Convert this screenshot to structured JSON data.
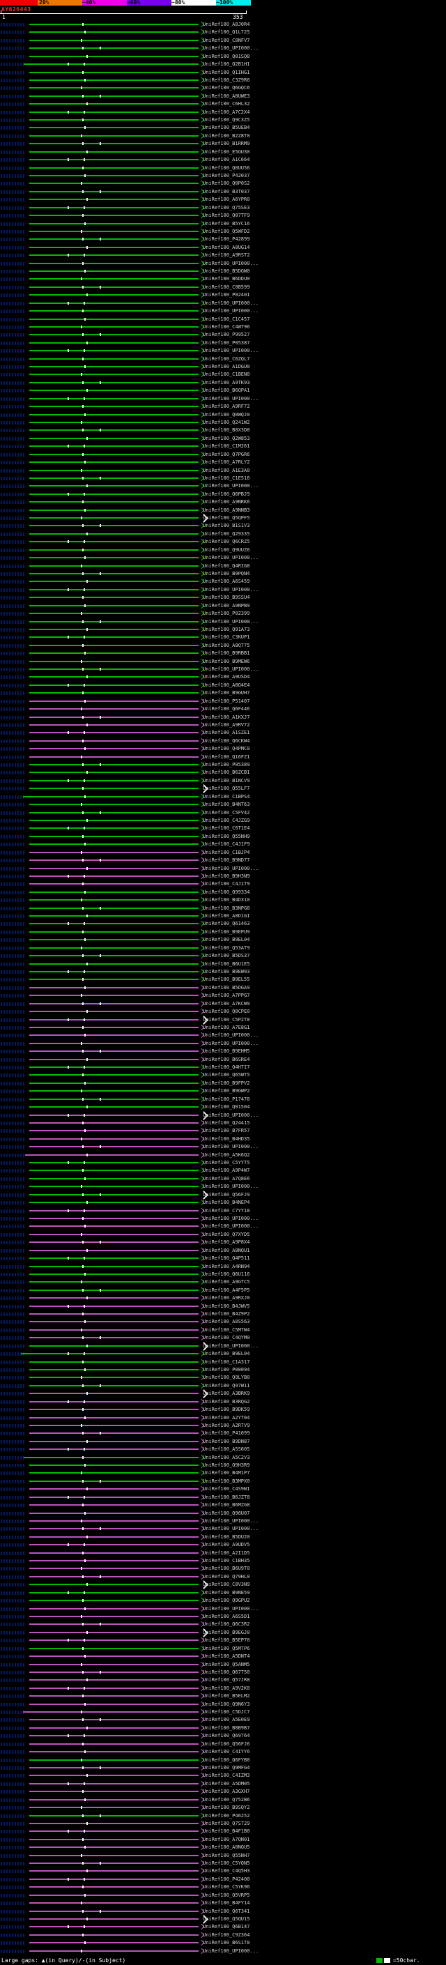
{
  "chart_data": {
    "type": "bar",
    "orientation": "horizontal",
    "title": "AY626443",
    "x_range": [
      1,
      353
    ],
    "ruler": {
      "start_label": "1",
      "end_label": "353"
    },
    "identity_scale": {
      "segments": [
        {
          "color": "#ee0000",
          "w": 54
        },
        {
          "color": "#ee7700",
          "w": 64
        },
        {
          "color": "#ee00ee",
          "w": 64
        },
        {
          "color": "#7700ee",
          "w": 64
        },
        {
          "color": "#ffffff",
          "w": 64
        },
        {
          "color": "#00eeee",
          "w": 50
        }
      ],
      "labels": [
        {
          "t": "20%",
          "x": 56
        },
        {
          "t": "~40%",
          "x": 118
        },
        {
          "t": "~60%",
          "x": 182
        },
        {
          "t": "~80%",
          "x": 246
        },
        {
          "t": "~100%",
          "x": 310
        }
      ]
    },
    "legend": {
      "large_gaps": "Large gaps: ▲(in Query)/-(in Subject)",
      "scale_label": "=50char."
    },
    "colors": {
      "green": "#00bb00",
      "purple": "#bb55bb",
      "gap_dot": "#ffffff",
      "ext_arrow": "#e8e8e8"
    },
    "defaults": {
      "start": 42,
      "end": 285
    },
    "gap_patterns": [
      [
        118
      ],
      [
        121
      ],
      [
        116
      ],
      [
        118,
        143
      ],
      [
        124
      ],
      [
        97,
        120
      ]
    ],
    "rows": [
      {
        "l": "UniRef100_A8J0R4",
        "c": "g"
      },
      {
        "l": "UniRef100_Q1L725",
        "c": "g"
      },
      {
        "l": "UniRef100_C0NFV7",
        "c": "g"
      },
      {
        "l": "UniRef100_UPI000...",
        "c": "g"
      },
      {
        "l": "UniRef100_Q01SQ8",
        "c": "g"
      },
      {
        "l": "UniRef100_Q2B1H1",
        "c": "g",
        "s": 34
      },
      {
        "l": "UniRef100_Q1IHG1",
        "c": "g"
      },
      {
        "l": "UniRef100_C3Z9R6",
        "c": "g"
      },
      {
        "l": "UniRef100_Q6GQC6",
        "c": "g"
      },
      {
        "l": "UniRef100_A8UWE3",
        "c": "g"
      },
      {
        "l": "UniRef100_C6HL32",
        "c": "g"
      },
      {
        "l": "UniRef100_A7C2X4",
        "c": "g"
      },
      {
        "l": "UniRef100_Q9C3Z5",
        "c": "g"
      },
      {
        "l": "UniRef100_B5UEB4",
        "c": "g"
      },
      {
        "l": "UniRef100_B2Z8T0",
        "c": "g"
      },
      {
        "l": "UniRef100_B1RRM9",
        "c": "g"
      },
      {
        "l": "UniRef100_E5GU30",
        "c": "g"
      },
      {
        "l": "UniRef100_A1C664",
        "c": "g"
      },
      {
        "l": "UniRef100_Q0UU56",
        "c": "g"
      },
      {
        "l": "UniRef100_P42037",
        "c": "g"
      },
      {
        "l": "UniRef100_Q0P0S2",
        "c": "g"
      },
      {
        "l": "UniRef100_B3T037",
        "c": "g"
      },
      {
        "l": "UniRef100_A6YPR0",
        "c": "g"
      },
      {
        "l": "UniRef100_Q75SE3",
        "c": "g"
      },
      {
        "l": "UniRef100_Q07TF9",
        "c": "g"
      },
      {
        "l": "UniRef100_B5YC16",
        "c": "g"
      },
      {
        "l": "UniRef100_Q5WFD2",
        "c": "g"
      },
      {
        "l": "UniRef100_P42899",
        "c": "g"
      },
      {
        "l": "UniRef100_A0UG14",
        "c": "g"
      },
      {
        "l": "UniRef100_A9RST2",
        "c": "g"
      },
      {
        "l": "UniRef100_UPI000...",
        "c": "g"
      },
      {
        "l": "UniRef100_B5DGW0",
        "c": "g"
      },
      {
        "l": "UniRef100_B6DDU0",
        "c": "g"
      },
      {
        "l": "UniRef100_C0B599",
        "c": "g"
      },
      {
        "l": "UniRef100_P02401",
        "c": "g"
      },
      {
        "l": "UniRef100_UPI000...",
        "c": "g"
      },
      {
        "l": "UniRef100_UPI000...",
        "c": "g"
      },
      {
        "l": "UniRef100_C1C457",
        "c": "g"
      },
      {
        "l": "UniRef100_C4WT96",
        "c": "g"
      },
      {
        "l": "UniRef100_P99527",
        "c": "g"
      },
      {
        "l": "UniRef100_P05387",
        "c": "g"
      },
      {
        "l": "UniRef100_UPI000...",
        "c": "g"
      },
      {
        "l": "UniRef100_C6ZQL7",
        "c": "g"
      },
      {
        "l": "UniRef100_A1DGU0",
        "c": "g"
      },
      {
        "l": "UniRef100_C1BEN0",
        "c": "g"
      },
      {
        "l": "UniRef100_A9TK93",
        "c": "g"
      },
      {
        "l": "UniRef100_B6QPA1",
        "c": "g"
      },
      {
        "l": "UniRef100_UPI000...",
        "c": "g"
      },
      {
        "l": "UniRef100_A9RF72",
        "c": "g"
      },
      {
        "l": "UniRef100_Q0WQJ0",
        "c": "g"
      },
      {
        "l": "UniRef100_Q241W2",
        "c": "g"
      },
      {
        "l": "UniRef100_B0X3D8",
        "c": "g"
      },
      {
        "l": "UniRef100_Q2W853",
        "c": "g"
      },
      {
        "l": "UniRef100_C1M261",
        "c": "g"
      },
      {
        "l": "UniRef100_Q7PGR6",
        "c": "g"
      },
      {
        "l": "UniRef100_A7RLY2",
        "c": "g"
      },
      {
        "l": "UniRef100_A1E3A0",
        "c": "g"
      },
      {
        "l": "UniRef100_C1E516",
        "c": "g"
      },
      {
        "l": "UniRef100_UPI000...",
        "c": "g"
      },
      {
        "l": "UniRef100_Q6PBJ9",
        "c": "g"
      },
      {
        "l": "UniRef100_A9NRK6",
        "c": "g"
      },
      {
        "l": "UniRef100_A9NNB3",
        "c": "g"
      },
      {
        "l": "UniRef100_Q5QPF5",
        "c": "g",
        "x": true
      },
      {
        "l": "UniRef100_B1S1V3",
        "c": "g"
      },
      {
        "l": "UniRef100_Q29335",
        "c": "g"
      },
      {
        "l": "UniRef100_Q6CRZ5",
        "c": "g"
      },
      {
        "l": "UniRef100_Q9UUZ6",
        "c": "g"
      },
      {
        "l": "UniRef100_UPI000...",
        "c": "g"
      },
      {
        "l": "UniRef100_Q4RIG8",
        "c": "g"
      },
      {
        "l": "UniRef100_B9PQN4",
        "c": "g"
      },
      {
        "l": "UniRef100_A6S459",
        "c": "g"
      },
      {
        "l": "UniRef100_UPI000...",
        "c": "g"
      },
      {
        "l": "UniRef100_B9SSU4",
        "c": "g"
      },
      {
        "l": "UniRef100_A9NPB9",
        "c": "g"
      },
      {
        "l": "UniRef100_P02399",
        "c": "g"
      },
      {
        "l": "UniRef100_UPI000...",
        "c": "g"
      },
      {
        "l": "UniRef100_Q91A73",
        "c": "g"
      },
      {
        "l": "UniRef100_C3KUP1",
        "c": "g"
      },
      {
        "l": "UniRef100_A8Q775",
        "c": "g"
      },
      {
        "l": "UniRef100_B9RBB1",
        "c": "g"
      },
      {
        "l": "UniRef100_B9MEW6",
        "c": "g"
      },
      {
        "l": "UniRef100_UPI000...",
        "c": "g"
      },
      {
        "l": "UniRef100_A9USD4",
        "c": "g"
      },
      {
        "l": "UniRef100_A8Q4E4",
        "c": "g"
      },
      {
        "l": "UniRef100_B9GUH7",
        "c": "g"
      },
      {
        "l": "UniRef100_P51407",
        "c": "p"
      },
      {
        "l": "UniRef100_Q6F446",
        "c": "p"
      },
      {
        "l": "UniRef100_A1KXJ7",
        "c": "p"
      },
      {
        "l": "UniRef100_A9RV72",
        "c": "p"
      },
      {
        "l": "UniRef100_A1SZE1",
        "c": "p"
      },
      {
        "l": "UniRef100_Q6CKW4",
        "c": "p"
      },
      {
        "l": "UniRef100_Q4PMC0",
        "c": "p"
      },
      {
        "l": "UniRef100_Q16FZ1",
        "c": "p"
      },
      {
        "l": "UniRef100_P05389",
        "c": "g"
      },
      {
        "l": "UniRef100_B6ZCB1",
        "c": "g"
      },
      {
        "l": "UniRef100_B1NCV9",
        "c": "g"
      },
      {
        "l": "UniRef100_Q55LF7",
        "c": "g",
        "x": true
      },
      {
        "l": "UniRef100_C1BPS4",
        "c": "g",
        "s": 33
      },
      {
        "l": "UniRef100_B4NT63",
        "c": "g"
      },
      {
        "l": "UniRef100_C5FV42",
        "c": "g"
      },
      {
        "l": "UniRef100_C4JZG9",
        "c": "g"
      },
      {
        "l": "UniRef100_C6T1E4",
        "c": "g"
      },
      {
        "l": "UniRef100_Q55NH9",
        "c": "g"
      },
      {
        "l": "UniRef100_C4J1F9",
        "c": "g"
      },
      {
        "l": "UniRef100_C1BJP4",
        "c": "p"
      },
      {
        "l": "UniRef100_B9ND77",
        "c": "p"
      },
      {
        "l": "UniRef100_UPI000...",
        "c": "p"
      },
      {
        "l": "UniRef100_B9H3N9",
        "c": "p"
      },
      {
        "l": "UniRef100_C4J1T9",
        "c": "p"
      },
      {
        "l": "UniRef100_Q99334",
        "c": "g"
      },
      {
        "l": "UniRef100_B4D310",
        "c": "g"
      },
      {
        "l": "UniRef100_B3NPG8",
        "c": "g"
      },
      {
        "l": "UniRef100_A0D1G1",
        "c": "g"
      },
      {
        "l": "UniRef100_Q61463",
        "c": "g"
      },
      {
        "l": "UniRef100_B9EPU9",
        "c": "g"
      },
      {
        "l": "UniRef100_B9EL04",
        "c": "g"
      },
      {
        "l": "UniRef100_Q53AT9",
        "c": "g"
      },
      {
        "l": "UniRef100_B5DS37",
        "c": "g"
      },
      {
        "l": "UniRef100_B6U1E5",
        "c": "g"
      },
      {
        "l": "UniRef100_B9EW93",
        "c": "g"
      },
      {
        "l": "UniRef100_B9EL55",
        "c": "g"
      },
      {
        "l": "UniRef100_B5DGA9",
        "c": "p"
      },
      {
        "l": "UniRef100_A7PPG7",
        "c": "p"
      },
      {
        "l": "UniRef100_A7KCW9",
        "c": "p"
      },
      {
        "l": "UniRef100_Q0CPE0",
        "c": "p"
      },
      {
        "l": "UniRef100_C5P2T8",
        "c": "p",
        "x": true
      },
      {
        "l": "UniRef100_A7E8G1",
        "c": "p"
      },
      {
        "l": "UniRef100_UPI000...",
        "c": "p"
      },
      {
        "l": "UniRef100_UPI000...",
        "c": "p"
      },
      {
        "l": "UniRef100_B9EHM5",
        "c": "p"
      },
      {
        "l": "UniRef100_B6SRE4",
        "c": "p"
      },
      {
        "l": "UniRef100_Q4H7I7",
        "c": "g"
      },
      {
        "l": "UniRef100_Q65WT5",
        "c": "g"
      },
      {
        "l": "UniRef100_B9FPV2",
        "c": "g"
      },
      {
        "l": "UniRef100_B9GWP2",
        "c": "g"
      },
      {
        "l": "UniRef100_P17478",
        "c": "g"
      },
      {
        "l": "UniRef100_Q01504",
        "c": "g"
      },
      {
        "l": "UniRef100_UPI000...",
        "c": "p",
        "x": true
      },
      {
        "l": "UniRef100_Q24415",
        "c": "p"
      },
      {
        "l": "UniRef100_B7FR57",
        "c": "p"
      },
      {
        "l": "UniRef100_B4HD35",
        "c": "p"
      },
      {
        "l": "UniRef100_UPI000...",
        "c": "p"
      },
      {
        "l": "UniRef100_A5K6Q2",
        "c": "p",
        "s": 36
      },
      {
        "l": "UniRef100_C5YYT5",
        "c": "g"
      },
      {
        "l": "UniRef100_A9P4W7",
        "c": "g"
      },
      {
        "l": "UniRef100_A7Q8E6",
        "c": "g"
      },
      {
        "l": "UniRef100_UPI000...",
        "c": "g"
      },
      {
        "l": "UniRef100_Q56FJ9",
        "c": "g",
        "x": true
      },
      {
        "l": "UniRef100_B4NEP4",
        "c": "g"
      },
      {
        "l": "UniRef100_C7YY18",
        "c": "p"
      },
      {
        "l": "UniRef100_UPI000...",
        "c": "p"
      },
      {
        "l": "UniRef100_UPI000...",
        "c": "p"
      },
      {
        "l": "UniRef100_Q7XYD5",
        "c": "p"
      },
      {
        "l": "UniRef100_A9P8X4",
        "c": "p"
      },
      {
        "l": "UniRef100_A8NQU1",
        "c": "p"
      },
      {
        "l": "UniRef100_Q4P511",
        "c": "g"
      },
      {
        "l": "UniRef100_A4RN94",
        "c": "g"
      },
      {
        "l": "UniRef100_Q6U116",
        "c": "g"
      },
      {
        "l": "UniRef100_A9GTC5",
        "c": "g"
      },
      {
        "l": "UniRef100_A4F5P5",
        "c": "g"
      },
      {
        "l": "UniRef100_A9RXJ0",
        "c": "p"
      },
      {
        "l": "UniRef100_B4JWV5",
        "c": "p"
      },
      {
        "l": "UniRef100_B4Z9P2",
        "c": "p"
      },
      {
        "l": "UniRef100_A0S563",
        "c": "p"
      },
      {
        "l": "UniRef100_C5M7W4",
        "c": "p"
      },
      {
        "l": "UniRef100_C4QYM0",
        "c": "p"
      },
      {
        "l": "UniRef100_UPI000...",
        "c": "g",
        "x": true
      },
      {
        "l": "UniRef100_B9EL04",
        "c": "g",
        "s": 30
      },
      {
        "l": "UniRef100_C1A317",
        "c": "g"
      },
      {
        "l": "UniRef100_P08094",
        "c": "g"
      },
      {
        "l": "UniRef100_Q9LYB0",
        "c": "g"
      },
      {
        "l": "UniRef100_Q97W11",
        "c": "g"
      },
      {
        "l": "UniRef100_A3BRK9",
        "c": "p",
        "x": true
      },
      {
        "l": "UniRef100_B3RQG2",
        "c": "p"
      },
      {
        "l": "UniRef100_B9DK59",
        "c": "p"
      },
      {
        "l": "UniRef100_A2YT04",
        "c": "p"
      },
      {
        "l": "UniRef100_A2R7V9",
        "c": "p"
      },
      {
        "l": "UniRef100_P41099",
        "c": "p"
      },
      {
        "l": "UniRef100_B9DN87",
        "c": "p"
      },
      {
        "l": "UniRef100_A5S605",
        "c": "p"
      },
      {
        "l": "UniRef100_A5C2V3",
        "c": "g",
        "s": 34
      },
      {
        "l": "UniRef100_Q9H3R9",
        "c": "g"
      },
      {
        "l": "UniRef100_B4M1P7",
        "c": "g"
      },
      {
        "l": "UniRef100_B3MPX0",
        "c": "g"
      },
      {
        "l": "UniRef100_C4S9W1",
        "c": "p"
      },
      {
        "l": "UniRef100_B6JZT8",
        "c": "p"
      },
      {
        "l": "UniRef100_B6MZG8",
        "c": "p"
      },
      {
        "l": "UniRef100_Q96U07",
        "c": "p"
      },
      {
        "l": "UniRef100_UPI000...",
        "c": "p"
      },
      {
        "l": "UniRef100_UPI000...",
        "c": "p"
      },
      {
        "l": "UniRef100_B5DU20",
        "c": "p"
      },
      {
        "l": "UniRef100_A9UDV5",
        "c": "p"
      },
      {
        "l": "UniRef100_A2I1D5",
        "c": "p"
      },
      {
        "l": "UniRef100_C1BH35",
        "c": "p"
      },
      {
        "l": "UniRef100_B6U9T0",
        "c": "p"
      },
      {
        "l": "UniRef100_Q79HL0",
        "c": "p"
      },
      {
        "l": "UniRef100_C8V3N9",
        "c": "g",
        "x": true
      },
      {
        "l": "UniRef100_B9NE59",
        "c": "g"
      },
      {
        "l": "UniRef100_Q9GPU2",
        "c": "g"
      },
      {
        "l": "UniRef100_UPI000...",
        "c": "p"
      },
      {
        "l": "UniRef100_A6S5D1",
        "c": "p"
      },
      {
        "l": "UniRef100_Q6C3R2",
        "c": "p"
      },
      {
        "l": "UniRef100_B9EGJ0",
        "c": "p",
        "x": true
      },
      {
        "l": "UniRef100_B5EP70",
        "c": "p"
      },
      {
        "l": "UniRef100_Q5M7P6",
        "c": "g"
      },
      {
        "l": "UniRef100_A5DNT4",
        "c": "p"
      },
      {
        "l": "UniRef100_Q5ANM5",
        "c": "p"
      },
      {
        "l": "UniRef100_Q67750",
        "c": "p"
      },
      {
        "l": "UniRef100_Q57JR8",
        "c": "p"
      },
      {
        "l": "UniRef100_A9V2K0",
        "c": "p"
      },
      {
        "l": "UniRef100_B5ELM2",
        "c": "p"
      },
      {
        "l": "UniRef100_Q9N6Y3",
        "c": "p"
      },
      {
        "l": "UniRef100_C5DJC7",
        "c": "p",
        "s": 33
      },
      {
        "l": "UniRef100_A5E0E9",
        "c": "p"
      },
      {
        "l": "UniRef100_B8B9B7",
        "c": "p"
      },
      {
        "l": "UniRef100_Q69764",
        "c": "p"
      },
      {
        "l": "UniRef100_Q56FJ6",
        "c": "p"
      },
      {
        "l": "UniRef100_C4IYY6",
        "c": "p"
      },
      {
        "l": "UniRef100_Q6FYB0",
        "c": "g"
      },
      {
        "l": "UniRef100_Q9MFG4",
        "c": "p"
      },
      {
        "l": "UniRef100_C4IZM3",
        "c": "p"
      },
      {
        "l": "UniRef100_A5DM05",
        "c": "p"
      },
      {
        "l": "UniRef100_A3GXH7",
        "c": "p"
      },
      {
        "l": "UniRef100_Q752B6",
        "c": "p"
      },
      {
        "l": "UniRef100_B9SQY2",
        "c": "p"
      },
      {
        "l": "UniRef100_P46252",
        "c": "g"
      },
      {
        "l": "UniRef100_Q7S729",
        "c": "p"
      },
      {
        "l": "UniRef100_B4F1B0",
        "c": "p"
      },
      {
        "l": "UniRef100_A7QN01",
        "c": "p"
      },
      {
        "l": "UniRef100_A0NQU5",
        "c": "p"
      },
      {
        "l": "UniRef100_Q55NH7",
        "c": "p"
      },
      {
        "l": "UniRef100_C5YQN5",
        "c": "p"
      },
      {
        "l": "UniRef100_C4Q5H3",
        "c": "p"
      },
      {
        "l": "UniRef100_P42400",
        "c": "p"
      },
      {
        "l": "UniRef100_C5YK96",
        "c": "p"
      },
      {
        "l": "UniRef100_Q5VRP5",
        "c": "p"
      },
      {
        "l": "UniRef100_B4FY14",
        "c": "p"
      },
      {
        "l": "UniRef100_Q6T341",
        "c": "p"
      },
      {
        "l": "UniRef100_Q5QU15",
        "c": "p",
        "x": true
      },
      {
        "l": "UniRef100_Q6B147",
        "c": "p"
      },
      {
        "l": "UniRef100_C9Z364",
        "c": "p"
      },
      {
        "l": "UniRef100_B6S1T8",
        "c": "p"
      },
      {
        "l": "UniRef100_UPI000...",
        "c": "p"
      }
    ]
  }
}
